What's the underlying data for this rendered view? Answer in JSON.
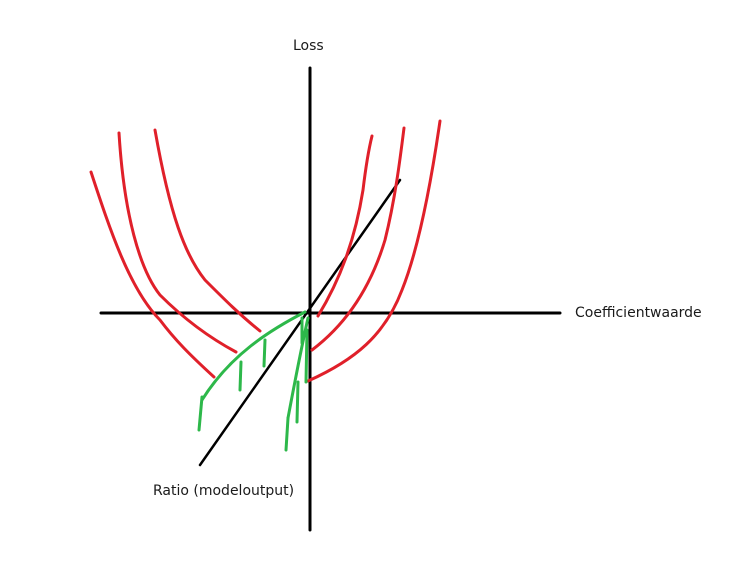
{
  "labels": {
    "y_axis": "Loss",
    "x_axis": "Coefficientwaarde",
    "diagonal": "Ratio (modeloutput)"
  },
  "colors": {
    "axes": "#000000",
    "red_curves": "#e0202a",
    "green_strokes": "#2db84a",
    "background": "#ffffff"
  },
  "elements": {
    "red_curve_count": 6,
    "green_stroke_count": 12
  }
}
